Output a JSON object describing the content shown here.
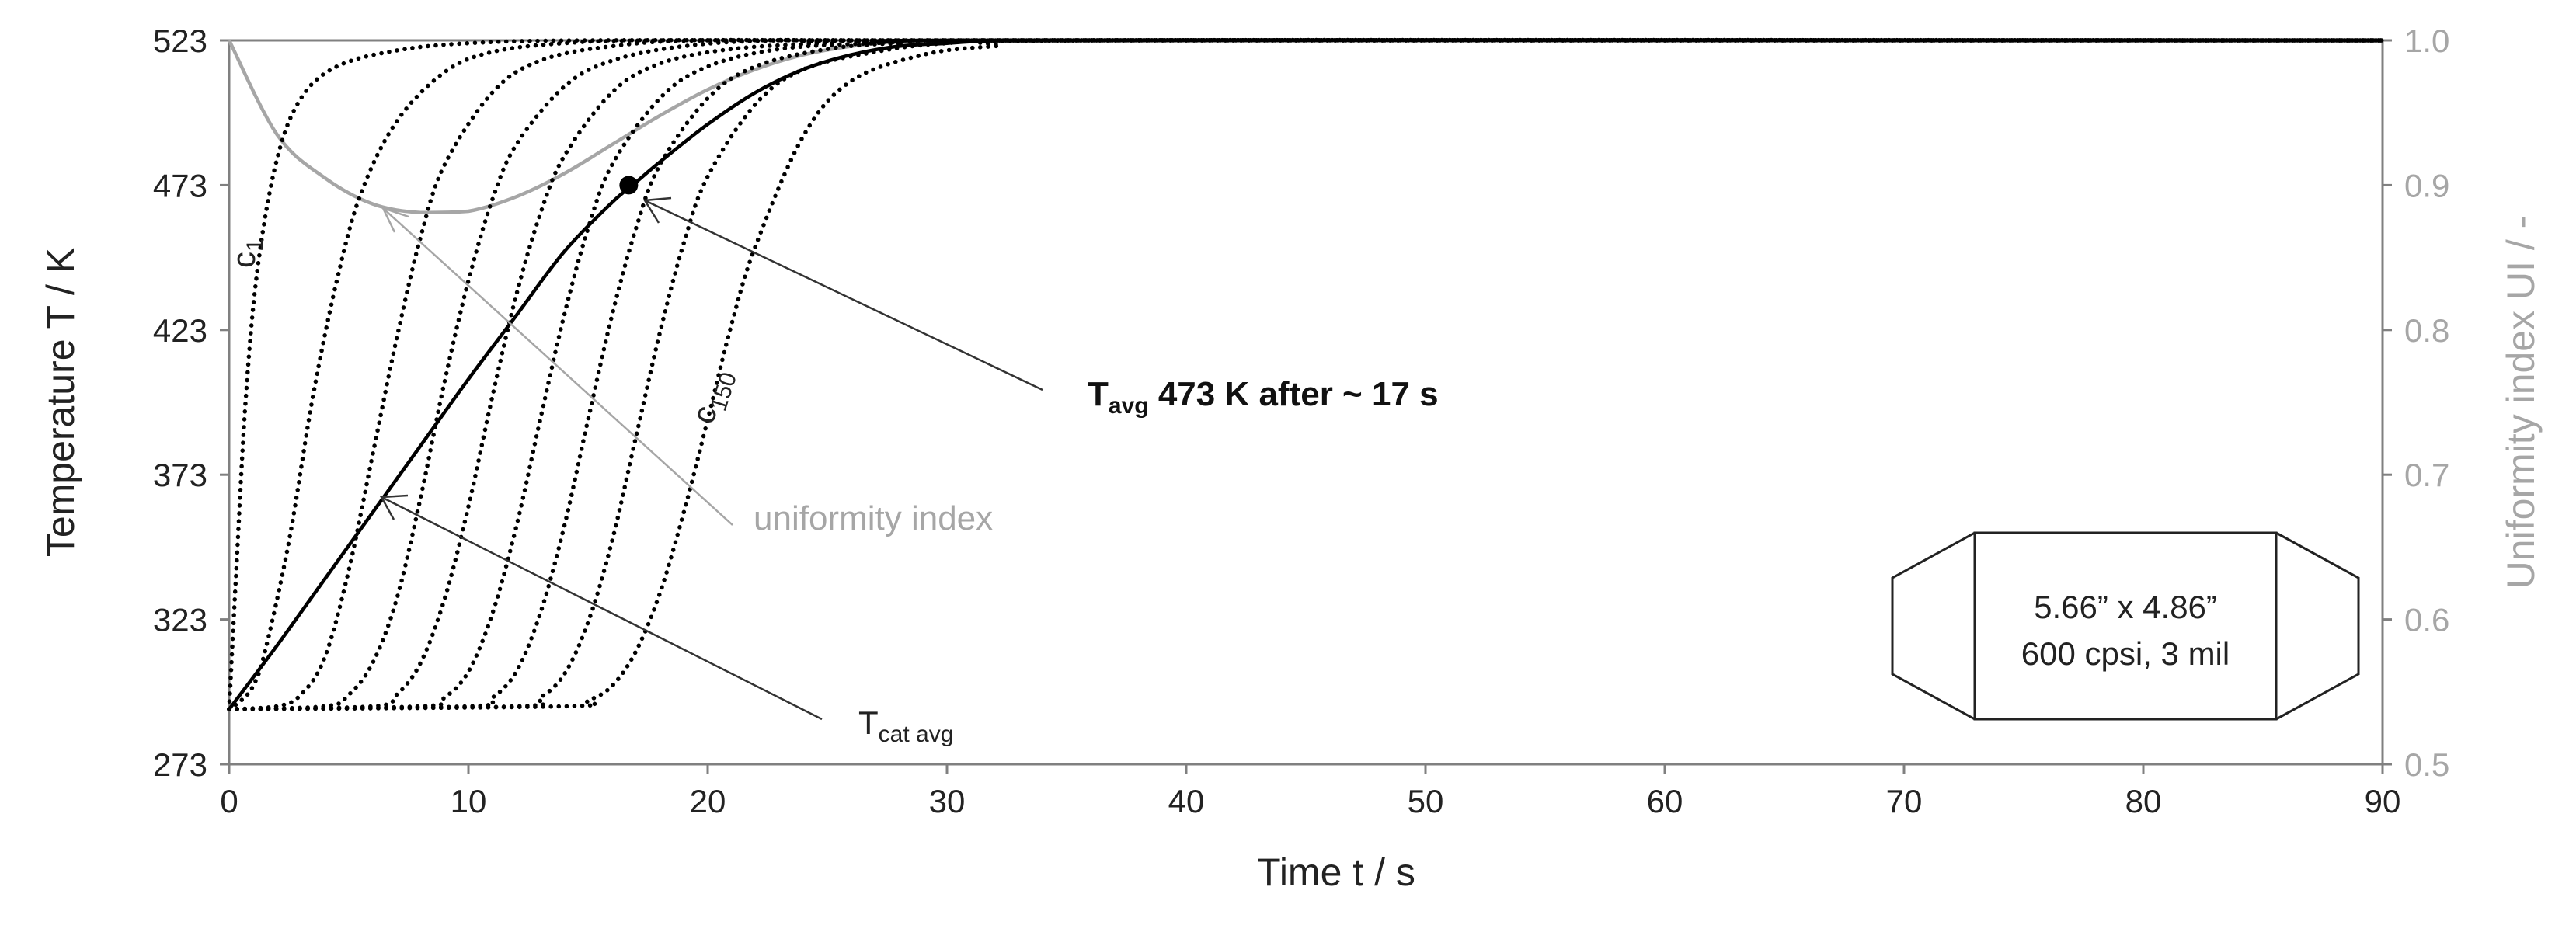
{
  "chart_data": {
    "type": "line",
    "title": "",
    "xlabel": "Time  t  / s",
    "ylabel": "Temperature T / K",
    "y2label": "Uniformity index UI / -",
    "xlim": [
      0,
      90
    ],
    "ylim": [
      273,
      523
    ],
    "y2lim": [
      0.5,
      1.0
    ],
    "x_ticks": [
      "0",
      "10",
      "20",
      "30",
      "40",
      "50",
      "60",
      "70",
      "80",
      "90"
    ],
    "y_ticks": [
      "273",
      "323",
      "373",
      "423",
      "473",
      "523"
    ],
    "y2_ticks": [
      "0.5",
      "0.6",
      "0.7",
      "0.8",
      "0.9",
      "1.0"
    ],
    "grid": false,
    "legend": "none",
    "colors": {
      "axis": "#808080",
      "channel": "#000000",
      "uniformity": "#a6a6a6",
      "average": "#000000"
    },
    "series": [
      {
        "label": "Tcat avg",
        "style": "solid-black",
        "axis": "left",
        "x": [
          0,
          2,
          4,
          6,
          8,
          10,
          12,
          14,
          16,
          17,
          18,
          20,
          22,
          24,
          26,
          28,
          30,
          32,
          35
        ],
        "y": [
          292,
          314,
          337,
          360,
          383,
          406,
          428,
          450,
          467,
          474,
          481,
          494,
          505,
          513,
          518,
          521,
          522,
          523,
          523
        ]
      },
      {
        "label": "uniformity index",
        "style": "solid-grey",
        "axis": "right",
        "x": [
          0,
          2,
          4,
          6,
          8,
          10,
          12,
          14,
          16,
          18,
          20,
          22,
          24,
          26,
          28,
          30,
          32,
          35
        ],
        "y": [
          1.0,
          0.935,
          0.905,
          0.887,
          0.881,
          0.882,
          0.892,
          0.908,
          0.928,
          0.948,
          0.966,
          0.98,
          0.99,
          0.996,
          0.999,
          1.0,
          1.0,
          1.0
        ]
      },
      {
        "label": "c1",
        "style": "dotted",
        "axis": "left",
        "x": [
          0,
          0.3,
          0.7,
          1.2,
          2,
          3,
          4.5,
          7,
          10,
          15,
          30,
          90
        ],
        "y": [
          292,
          340,
          400,
          445,
          482,
          503,
          514,
          519.5,
          522,
          523,
          523,
          523
        ]
      },
      {
        "style": "dotted",
        "axis": "left",
        "x": [
          0,
          0.5,
          1,
          1.5,
          2.5,
          3.5,
          4.5,
          5.5,
          7,
          9,
          11,
          14,
          18,
          30,
          90
        ],
        "y": [
          292,
          295,
          300,
          312,
          350,
          400,
          440,
          470,
          495,
          512,
          519,
          522,
          523,
          523,
          523
        ]
      },
      {
        "style": "dotted",
        "axis": "left",
        "x": [
          0,
          2,
          3,
          4,
          5,
          6,
          7,
          8,
          9,
          11,
          13,
          16,
          20,
          30,
          90
        ],
        "y": [
          292,
          293,
          297,
          310,
          340,
          380,
          420,
          455,
          480,
          505,
          516,
          521,
          523,
          523,
          523
        ]
      },
      {
        "style": "dotted",
        "axis": "left",
        "x": [
          0,
          4,
          5,
          6,
          7,
          8,
          9,
          10,
          11,
          12,
          14,
          16,
          19,
          23,
          30,
          90
        ],
        "y": [
          292,
          293,
          297,
          308,
          330,
          365,
          405,
          440,
          468,
          487,
          507,
          516,
          521,
          523,
          523,
          523
        ]
      },
      {
        "style": "dotted",
        "axis": "left",
        "x": [
          0,
          6,
          7,
          8,
          9,
          10,
          11,
          12,
          13,
          14,
          16,
          18,
          21,
          25,
          30,
          90
        ],
        "y": [
          292,
          293,
          297,
          308,
          330,
          362,
          400,
          435,
          463,
          483,
          505,
          515,
          520,
          522,
          523,
          523
        ]
      },
      {
        "style": "dotted",
        "axis": "left",
        "x": [
          0,
          8,
          9,
          10,
          11,
          12,
          13,
          14,
          15,
          16,
          18,
          20,
          23,
          27,
          32,
          90
        ],
        "y": [
          292,
          293,
          296,
          305,
          325,
          355,
          392,
          428,
          458,
          480,
          503,
          514,
          520,
          522,
          523,
          523
        ]
      },
      {
        "style": "dotted",
        "axis": "left",
        "x": [
          0,
          10,
          11,
          12,
          13,
          14,
          15,
          16,
          17,
          18,
          20,
          22,
          25,
          28,
          33,
          90
        ],
        "y": [
          292,
          293,
          296,
          305,
          325,
          355,
          392,
          428,
          458,
          480,
          503,
          514,
          520,
          522,
          523,
          523
        ]
      },
      {
        "style": "dotted",
        "axis": "left",
        "x": [
          0,
          12,
          13,
          14,
          15,
          16,
          17,
          18,
          19,
          20,
          22,
          24,
          27,
          30,
          35,
          90
        ],
        "y": [
          292,
          293,
          296,
          304,
          322,
          350,
          386,
          422,
          453,
          476,
          501,
          513,
          519,
          522,
          523,
          523
        ]
      },
      {
        "label": "c150",
        "style": "dotted",
        "axis": "left",
        "x": [
          0,
          14,
          15,
          16,
          17,
          18,
          19,
          20,
          21,
          22,
          24,
          26,
          29,
          32,
          37,
          90
        ],
        "y": [
          292,
          293,
          295,
          300,
          312,
          332,
          360,
          392,
          425,
          452,
          490,
          509,
          518,
          521,
          523,
          523
        ]
      }
    ],
    "point": {
      "x": 16.7,
      "y": 473
    },
    "annotations": {
      "tavg_main": "T",
      "tavg_sub": "avg",
      "tavg_rest": " 473 K after ~ 17 s",
      "uniformity": "uniformity index",
      "tcat_main": "T",
      "tcat_sub": "cat avg",
      "c1_main": "c",
      "c1_sub": "1",
      "c150_main": "c",
      "c150_sub": "150",
      "box_line1": "5.66” x 4.86”",
      "box_line2": "600 cpsi, 3 mil"
    }
  }
}
